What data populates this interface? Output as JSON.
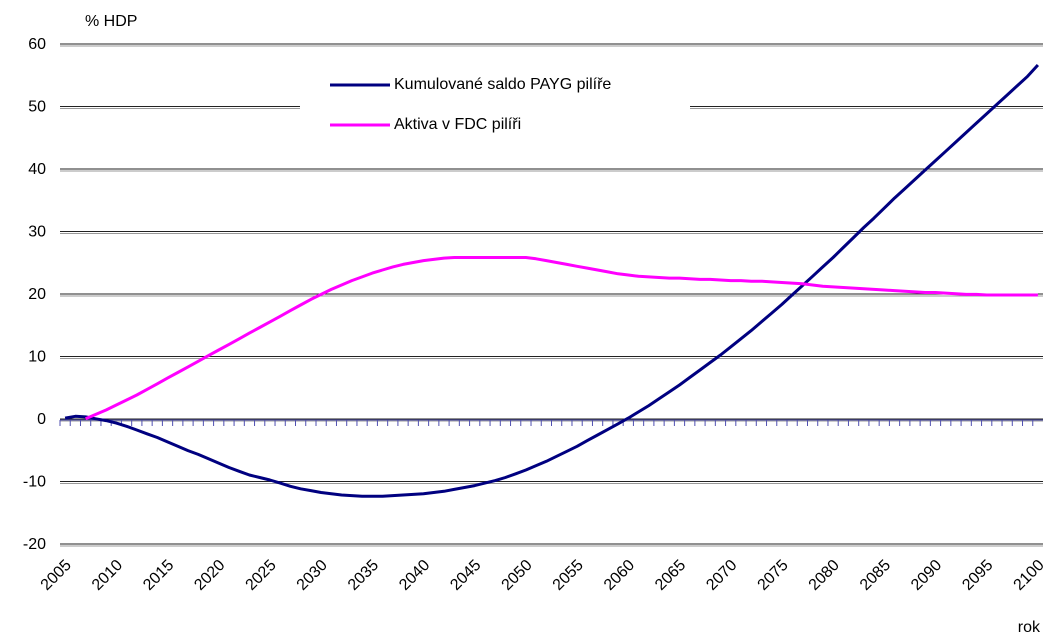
{
  "chart_data": {
    "type": "line",
    "y_label": "% HDP",
    "x_label": "rok",
    "x": [
      2005,
      2006,
      2007,
      2008,
      2009,
      2010,
      2011,
      2012,
      2013,
      2014,
      2015,
      2016,
      2017,
      2018,
      2019,
      2020,
      2021,
      2022,
      2023,
      2024,
      2025,
      2026,
      2027,
      2028,
      2029,
      2030,
      2031,
      2032,
      2033,
      2034,
      2035,
      2036,
      2037,
      2038,
      2039,
      2040,
      2041,
      2042,
      2043,
      2044,
      2045,
      2046,
      2047,
      2048,
      2049,
      2050,
      2051,
      2052,
      2053,
      2054,
      2055,
      2056,
      2057,
      2058,
      2059,
      2060,
      2061,
      2062,
      2063,
      2064,
      2065,
      2066,
      2067,
      2068,
      2069,
      2070,
      2071,
      2072,
      2073,
      2074,
      2075,
      2076,
      2077,
      2078,
      2079,
      2080,
      2081,
      2082,
      2083,
      2084,
      2085,
      2086,
      2087,
      2088,
      2089,
      2090,
      2091,
      2092,
      2093,
      2094,
      2095,
      2096,
      2097,
      2098,
      2099,
      2100
    ],
    "series": [
      {
        "name": "Kumulované saldo PAYG pilíře",
        "color": "#000080",
        "values": [
          0.3,
          0.6,
          0.5,
          0.2,
          -0.1,
          -0.5,
          -1.0,
          -1.6,
          -2.2,
          -2.8,
          -3.5,
          -4.2,
          -4.9,
          -5.5,
          -6.2,
          -6.9,
          -7.6,
          -8.2,
          -8.8,
          -9.2,
          -9.6,
          -10.1,
          -10.6,
          -11.0,
          -11.3,
          -11.6,
          -11.8,
          -12.0,
          -12.1,
          -12.2,
          -12.2,
          -12.2,
          -12.1,
          -12.0,
          -11.9,
          -11.8,
          -11.6,
          -11.4,
          -11.1,
          -10.8,
          -10.5,
          -10.1,
          -9.7,
          -9.2,
          -8.6,
          -8.0,
          -7.3,
          -6.6,
          -5.8,
          -5.0,
          -4.2,
          -3.3,
          -2.4,
          -1.5,
          -0.6,
          0.3,
          1.3,
          2.3,
          3.4,
          4.5,
          5.6,
          6.8,
          8.0,
          9.2,
          10.4,
          11.7,
          13.0,
          14.3,
          15.7,
          17.1,
          18.5,
          20.0,
          21.5,
          23.0,
          24.5,
          26.0,
          27.6,
          29.2,
          30.8,
          32.3,
          33.9,
          35.5,
          37.0,
          38.5,
          40.0,
          41.5,
          43.0,
          44.5,
          46.0,
          47.5,
          49.0,
          50.5,
          52.0,
          53.5,
          55.0,
          56.8
        ]
      },
      {
        "name": "Aktiva v FDC pilíři",
        "color": "#ff00ff",
        "values": [
          null,
          null,
          0.2,
          0.9,
          1.6,
          2.4,
          3.2,
          4.0,
          4.9,
          5.8,
          6.7,
          7.6,
          8.5,
          9.4,
          10.3,
          11.2,
          12.1,
          13.0,
          13.9,
          14.8,
          15.7,
          16.6,
          17.5,
          18.4,
          19.3,
          20.1,
          20.9,
          21.6,
          22.3,
          22.9,
          23.5,
          24.0,
          24.5,
          24.9,
          25.2,
          25.5,
          25.7,
          25.9,
          26.0,
          26.0,
          26.0,
          26.0,
          26.0,
          26.0,
          26.0,
          26.0,
          25.8,
          25.5,
          25.2,
          24.9,
          24.6,
          24.3,
          24.0,
          23.7,
          23.4,
          23.2,
          23.0,
          22.9,
          22.8,
          22.7,
          22.7,
          22.6,
          22.5,
          22.5,
          22.4,
          22.3,
          22.3,
          22.2,
          22.2,
          22.1,
          22.0,
          21.9,
          21.8,
          21.6,
          21.4,
          21.3,
          21.2,
          21.1,
          21.0,
          20.9,
          20.8,
          20.7,
          20.6,
          20.5,
          20.4,
          20.4,
          20.3,
          20.2,
          20.1,
          20.1,
          20.0,
          20.0,
          20.0,
          20.0,
          20.0,
          20.0
        ]
      }
    ],
    "xlim": [
      2004.5,
      2100.5
    ],
    "xticks": [
      2005,
      2010,
      2015,
      2020,
      2025,
      2030,
      2035,
      2040,
      2045,
      2050,
      2055,
      2060,
      2065,
      2070,
      2075,
      2080,
      2085,
      2090,
      2095,
      2100
    ],
    "ylim": [
      -20,
      60
    ],
    "yticks": [
      -20,
      -10,
      0,
      10,
      20,
      30,
      40,
      50,
      60
    ],
    "grid": true,
    "legend": "upper center"
  }
}
